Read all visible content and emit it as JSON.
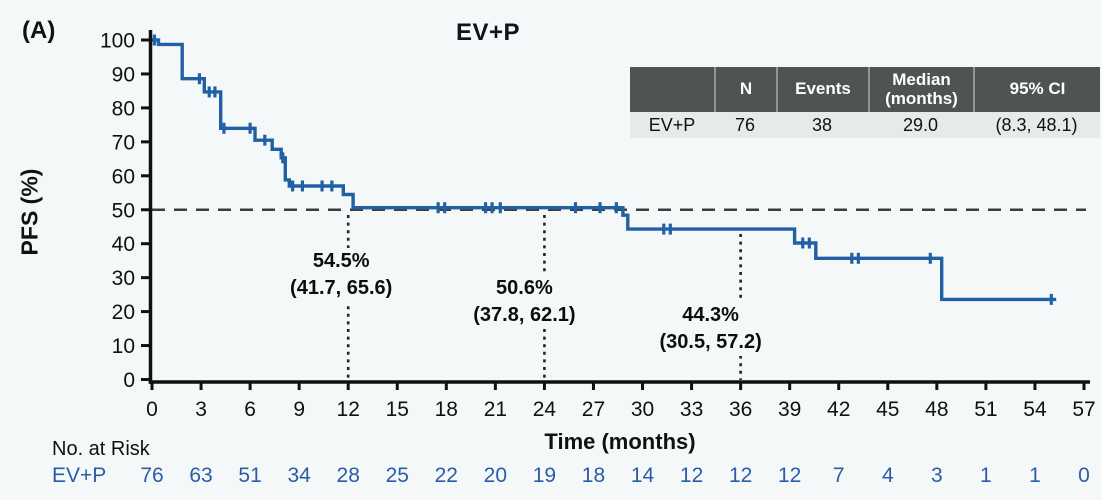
{
  "panel_label": "(A)",
  "colors": {
    "curve": "#2160a5",
    "risk_text": "#2a5ca8",
    "table_header_bg": "#4e5454",
    "table_row_bg": "#e7eaeb",
    "reference_line": "#3d3d3d",
    "background": "#f5f8f9"
  },
  "chart_data": {
    "type": "line",
    "subtype": "kaplan-meier-step",
    "title": "EV+P",
    "xlabel": "Time (months)",
    "ylabel": "PFS (%)",
    "xlim": [
      0,
      57
    ],
    "ylim": [
      0,
      100
    ],
    "xticks": [
      0,
      3,
      6,
      9,
      12,
      15,
      18,
      21,
      24,
      27,
      30,
      33,
      36,
      39,
      42,
      45,
      48,
      51,
      54,
      57
    ],
    "yticks": [
      0,
      10,
      20,
      30,
      40,
      50,
      60,
      70,
      80,
      90,
      100
    ],
    "reference_line_pct": 50,
    "grid": false,
    "series": [
      {
        "name": "EV+P",
        "start": [
          0,
          100
        ],
        "steps": [
          [
            0.4,
            98.7
          ],
          [
            1.85,
            88.6
          ],
          [
            3.2,
            84.7
          ],
          [
            4.2,
            74.0
          ],
          [
            6.3,
            70.5
          ],
          [
            7.35,
            67.8
          ],
          [
            7.9,
            65.3
          ],
          [
            8.15,
            58.8
          ],
          [
            8.4,
            57.0
          ],
          [
            11.7,
            54.5
          ],
          [
            12.3,
            50.6
          ],
          [
            28.8,
            48.4
          ],
          [
            29.1,
            44.3
          ],
          [
            39.3,
            40.2
          ],
          [
            40.6,
            35.7
          ],
          [
            48.3,
            23.6
          ]
        ],
        "end_time": 55.3,
        "censor_marks": [
          [
            0.15,
            100
          ],
          [
            2.9,
            88.6
          ],
          [
            3.5,
            84.7
          ],
          [
            3.85,
            84.7
          ],
          [
            4.4,
            74.0
          ],
          [
            6.0,
            74.0
          ],
          [
            6.9,
            70.5
          ],
          [
            8.0,
            65.3
          ],
          [
            8.6,
            57.0
          ],
          [
            9.2,
            57.0
          ],
          [
            10.4,
            57.0
          ],
          [
            11.0,
            57.0
          ],
          [
            17.5,
            50.6
          ],
          [
            17.9,
            50.6
          ],
          [
            20.4,
            50.6
          ],
          [
            20.8,
            50.6
          ],
          [
            21.3,
            50.6
          ],
          [
            25.9,
            50.6
          ],
          [
            27.4,
            50.6
          ],
          [
            28.4,
            50.6
          ],
          [
            31.3,
            44.3
          ],
          [
            31.7,
            44.3
          ],
          [
            39.8,
            40.2
          ],
          [
            40.2,
            40.2
          ],
          [
            42.8,
            35.7
          ],
          [
            43.2,
            35.7
          ],
          [
            47.6,
            35.7
          ],
          [
            55.0,
            23.6
          ]
        ]
      }
    ],
    "milestones": [
      {
        "month": 12,
        "rate": "54.5%",
        "ci": "(41.7, 65.6)"
      },
      {
        "month": 24,
        "rate": "50.6%",
        "ci": "(37.8, 62.1)"
      },
      {
        "month": 36,
        "rate": "44.3%",
        "ci": "(30.5, 57.2)"
      }
    ],
    "summary_table": {
      "headers": [
        "",
        "N",
        "Events",
        "Median\n(months)",
        "95% CI"
      ],
      "rows": [
        [
          "EV+P",
          "76",
          "38",
          "29.0",
          "(8.3, 48.1)"
        ]
      ]
    },
    "risk_table": {
      "label": "No. at Risk",
      "series": [
        {
          "name": "EV+P",
          "counts": [
            76,
            63,
            51,
            34,
            28,
            25,
            22,
            20,
            19,
            18,
            14,
            12,
            12,
            12,
            7,
            4,
            3,
            1,
            1,
            0
          ]
        }
      ]
    }
  }
}
